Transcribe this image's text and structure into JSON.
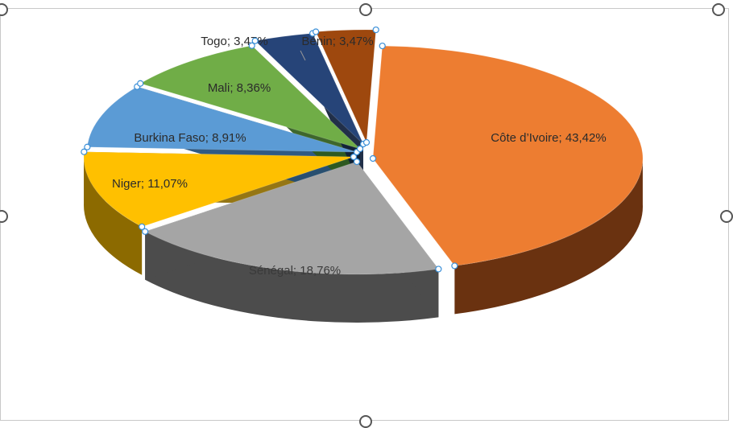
{
  "chart_data": {
    "type": "pie",
    "style": "3d-exploded",
    "title": "",
    "legend": "none",
    "decimal_separator": ",",
    "slices": [
      {
        "name": "Côte d’Ivoire",
        "value": 43.42,
        "label": "Côte d’Ivoire; 43,42%",
        "color": "#ED7D31",
        "side_color": "#6A3210",
        "label_color": "#2B2B2B"
      },
      {
        "name": "Sénégal",
        "value": 18.76,
        "label": "Sénégal; 18,76%",
        "color": "#A5A5A5",
        "side_color": "#4C4C4C",
        "label_color": "#3A3A3A"
      },
      {
        "name": "Niger",
        "value": 11.07,
        "label": "Niger; 11,07%",
        "color": "#FFC000",
        "side_color": "#8C6A00",
        "label_color": "#2B2B2B"
      },
      {
        "name": "Burkina Faso",
        "value": 8.91,
        "label": "Burkina Faso; 8,91%",
        "color": "#5B9BD5",
        "side_color": "#1E4C78",
        "label_color": "#2B2B2B"
      },
      {
        "name": "Mali",
        "value": 8.36,
        "label": "Mali; 8,36%",
        "color": "#70AD47",
        "side_color": "#2E5A1A",
        "label_color": "#2B2B2B"
      },
      {
        "name": "Togo",
        "value": 3.47,
        "label": "Togo; 3,47%",
        "color": "#264478",
        "side_color": "#0E1D38",
        "label_color": "#2B2B2B"
      },
      {
        "name": "Bénin",
        "value": 3.47,
        "label": "Bénin; 3,47%",
        "color": "#9E480E",
        "side_color": "#4A1F04",
        "label_color": "#2B2B2B"
      }
    ]
  }
}
